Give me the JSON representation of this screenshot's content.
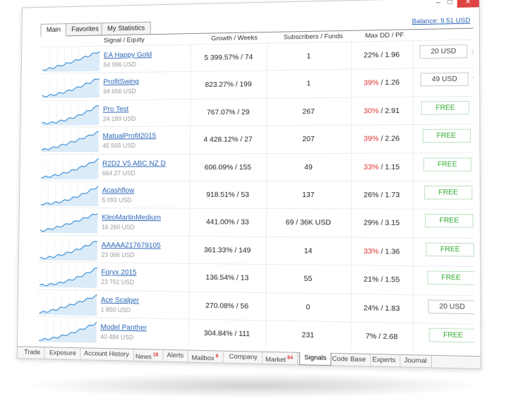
{
  "window": {
    "minimize": "–",
    "maximize": "□",
    "close": "✕"
  },
  "tabs": [
    {
      "label": "Main",
      "active": true
    },
    {
      "label": "Favorites",
      "active": false
    },
    {
      "label": "My Statistics",
      "active": false
    }
  ],
  "balance": "Balance: 9.51 USD",
  "columns": {
    "signal": "Signal / Equity",
    "growth": "Growth / Weeks",
    "subs": "Subscribers / Funds",
    "dd": "Max DD / PF"
  },
  "rows": [
    {
      "name": "EA Happy Gold",
      "equity": "54 996 USD",
      "growth": "5 399.57% / 74",
      "subs": "1",
      "dd": "22%",
      "pf": " / 1.96",
      "dd_red": false,
      "price": "20 USD",
      "free": false
    },
    {
      "name": "ProfitSwing",
      "equity": "94 656 USD",
      "growth": "823.27% / 199",
      "subs": "1",
      "dd": "39%",
      "pf": " / 1.26",
      "dd_red": true,
      "price": "49 USD",
      "free": false
    },
    {
      "name": "Pro Test",
      "equity": "24 189 USD",
      "growth": "767.07% / 29",
      "subs": "267",
      "dd": "30%",
      "pf": " / 2.91",
      "dd_red": true,
      "price": "FREE",
      "free": true
    },
    {
      "name": "MatualProfit2015",
      "equity": "45 565 USD",
      "growth": "4 428.12% / 27",
      "subs": "207",
      "dd": "39%",
      "pf": " / 2.26",
      "dd_red": true,
      "price": "FREE",
      "free": true
    },
    {
      "name": "R2D2 V5 ABC NZ D",
      "equity": "664.27 USD",
      "growth": "606.09% / 155",
      "subs": "49",
      "dd": "33%",
      "pf": " / 1.15",
      "dd_red": true,
      "price": "FREE",
      "free": true
    },
    {
      "name": "Acashflow",
      "equity": "5 093 USD",
      "growth": "918.51% / 53",
      "subs": "137",
      "dd": "26%",
      "pf": " / 1.73",
      "dd_red": false,
      "price": "FREE",
      "free": true
    },
    {
      "name": "KleoMartinMedium",
      "equity": "16 260 USD",
      "growth": "441.00% / 33",
      "subs": "69 / 36K USD",
      "dd": "29%",
      "pf": " / 3.15",
      "dd_red": false,
      "price": "FREE",
      "free": true
    },
    {
      "name": "AAAAA217679105",
      "equity": "23 066 USD",
      "growth": "361.33% / 149",
      "subs": "14",
      "dd": "33%",
      "pf": " / 1.36",
      "dd_red": true,
      "price": "FREE",
      "free": true
    },
    {
      "name": "Foryx 2015",
      "equity": "23 761 USD",
      "growth": "136.54% / 13",
      "subs": "55",
      "dd": "21%",
      "pf": " / 1.55",
      "dd_red": false,
      "price": "FREE",
      "free": true
    },
    {
      "name": "Ace Scalper",
      "equity": "1 850 USD",
      "growth": "270.08% / 56",
      "subs": "0",
      "dd": "24%",
      "pf": " / 1.83",
      "dd_red": false,
      "price": "20 USD",
      "free": false
    },
    {
      "name": "Model Panther",
      "equity": "40 484 USD",
      "growth": "304.84% / 111",
      "subs": "231",
      "dd": "7%",
      "pf": " / 2.68",
      "dd_red": false,
      "price": "FREE",
      "free": true
    }
  ],
  "bottom_tabs": [
    {
      "label": "Trade",
      "badge": ""
    },
    {
      "label": "Exposure",
      "badge": ""
    },
    {
      "label": "Account History",
      "badge": ""
    },
    {
      "label": "News",
      "badge": "16"
    },
    {
      "label": "Alerts",
      "badge": ""
    },
    {
      "label": "Mailbox",
      "badge": "6"
    },
    {
      "label": "Company",
      "badge": ""
    },
    {
      "label": "Market",
      "badge": "64"
    },
    {
      "label": "Signals",
      "badge": "",
      "active": true
    },
    {
      "label": "Code Base",
      "badge": ""
    },
    {
      "label": "Experts",
      "badge": ""
    },
    {
      "label": "Journal",
      "badge": ""
    }
  ],
  "colors": {
    "link": "#2a66b8",
    "red": "#e03030",
    "free": "#2aa82a",
    "spark": "#3a8fd6",
    "close": "#e04343"
  }
}
